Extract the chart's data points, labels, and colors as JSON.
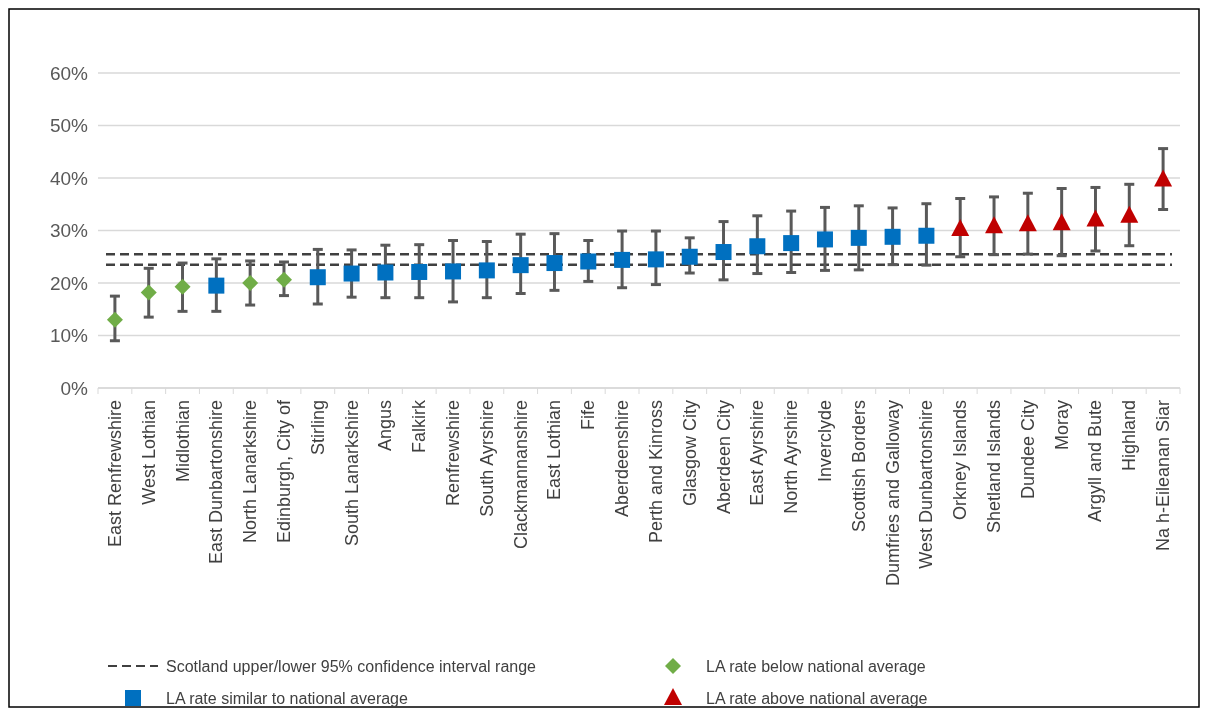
{
  "chart_data": {
    "type": "scatter",
    "categories": [
      "East Renfrewshire",
      "West Lothian",
      "Midlothian",
      "East Dunbartonshire",
      "North Lanarkshire",
      "Edinburgh, City of",
      "Stirling",
      "South Lanarkshire",
      "Angus",
      "Falkirk",
      "Renfrewshire",
      "South Ayrshire",
      "Clackmannanshire",
      "East Lothian",
      "Fife",
      "Aberdeenshire",
      "Perth and Kinross",
      "Glasgow City",
      "Aberdeen City",
      "East Ayrshire",
      "North Ayrshire",
      "Inverclyde",
      "Scottish Borders",
      "Dumfries and Galloway",
      "West Dunbartonshire",
      "Orkney Islands",
      "Shetland Islands",
      "Dundee City",
      "Moray",
      "Argyll and Bute",
      "Highland",
      "Na h-Eileanan Siar"
    ],
    "series": [
      {
        "name": "LA rate below national average",
        "color": "#70ad47",
        "marker": "diamond",
        "values": [
          13,
          18.2,
          19.3,
          null,
          20,
          20.6,
          null,
          null,
          null,
          null,
          null,
          null,
          null,
          null,
          null,
          null,
          null,
          null,
          null,
          null,
          null,
          null,
          null,
          null,
          null,
          null,
          null,
          null,
          null,
          null,
          null,
          null
        ],
        "errors": [
          [
            9,
            17.5
          ],
          [
            13.5,
            22.8
          ],
          [
            14.6,
            23.8
          ],
          null,
          [
            15.8,
            24.2
          ],
          [
            17.6,
            24
          ],
          null,
          null,
          null,
          null,
          null,
          null,
          null,
          null,
          null,
          null,
          null,
          null,
          null,
          null,
          null,
          null,
          null,
          null,
          null,
          null,
          null,
          null,
          null,
          null,
          null,
          null
        ]
      },
      {
        "name": "LA rate similar to national average",
        "color": "#0070c0",
        "marker": "square",
        "values": [
          null,
          null,
          null,
          19.5,
          null,
          null,
          21.1,
          21.8,
          22,
          22.1,
          22.2,
          22.4,
          23.4,
          23.8,
          24.1,
          24.4,
          24.5,
          25,
          25.9,
          27,
          27.6,
          28.3,
          28.6,
          28.8,
          29,
          null,
          null,
          null,
          null,
          null,
          null,
          null
        ],
        "errors": [
          null,
          null,
          null,
          [
            14.6,
            24.6
          ],
          null,
          null,
          [
            16,
            26.4
          ],
          [
            17.3,
            26.3
          ],
          [
            17.2,
            27.2
          ],
          [
            17.2,
            27.3
          ],
          [
            16.4,
            28.1
          ],
          [
            17.2,
            27.9
          ],
          [
            18,
            29.3
          ],
          [
            18.6,
            29.4
          ],
          [
            20.3,
            28.1
          ],
          [
            19.1,
            29.9
          ],
          [
            19.7,
            29.9
          ],
          [
            21.9,
            28.6
          ],
          [
            20.6,
            31.7
          ],
          [
            21.8,
            32.8
          ],
          [
            22,
            33.7
          ],
          [
            22.4,
            34.4
          ],
          [
            22.5,
            34.7
          ],
          [
            23.5,
            34.3
          ],
          [
            23.4,
            35.1
          ],
          null,
          null,
          null,
          null,
          null,
          null,
          null
        ]
      },
      {
        "name": "LA rate above national average",
        "color": "#c00000",
        "marker": "triangle",
        "values": [
          null,
          null,
          null,
          null,
          null,
          null,
          null,
          null,
          null,
          null,
          null,
          null,
          null,
          null,
          null,
          null,
          null,
          null,
          null,
          null,
          null,
          null,
          null,
          null,
          null,
          30.3,
          30.8,
          31.2,
          31.4,
          32.1,
          32.8,
          39.7
        ],
        "errors": [
          null,
          null,
          null,
          null,
          null,
          null,
          null,
          null,
          null,
          null,
          null,
          null,
          null,
          null,
          null,
          null,
          null,
          null,
          null,
          null,
          null,
          null,
          null,
          null,
          null,
          [
            25,
            36.1
          ],
          [
            25.4,
            36.4
          ],
          [
            25.5,
            37.1
          ],
          [
            25.2,
            38
          ],
          [
            26.1,
            38.2
          ],
          [
            27.1,
            38.8
          ],
          [
            34,
            45.6
          ]
        ]
      }
    ],
    "ref_lines": [
      {
        "axis": "y",
        "value": 25.5,
        "label": "Scotland upper/lower 95% confidence interval range",
        "color": "#404040",
        "line_style": "dashed"
      },
      {
        "axis": "y",
        "value": 23.5,
        "color": "#404040",
        "line_style": "dashed"
      }
    ],
    "ylim": [
      0,
      60
    ],
    "yticks": [
      {
        "value": 0,
        "label": "0%"
      },
      {
        "value": 10,
        "label": "10%"
      },
      {
        "value": 20,
        "label": "20%"
      },
      {
        "value": 30,
        "label": "30%"
      },
      {
        "value": 40,
        "label": "40%"
      },
      {
        "value": 50,
        "label": "50%"
      },
      {
        "value": 60,
        "label": "60%"
      }
    ],
    "grid": "y",
    "legend": "bottom"
  }
}
